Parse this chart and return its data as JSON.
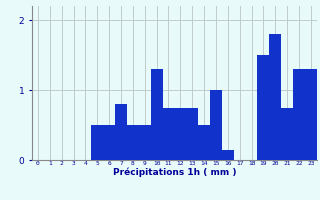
{
  "hours": [
    0,
    1,
    2,
    3,
    4,
    5,
    6,
    7,
    8,
    9,
    10,
    11,
    12,
    13,
    14,
    15,
    16,
    17,
    18,
    19,
    20,
    21,
    22,
    23
  ],
  "values": [
    0,
    0,
    0,
    0,
    0,
    0.5,
    0.5,
    0.8,
    0.5,
    0.5,
    1.3,
    0.75,
    0.75,
    0.75,
    0.5,
    1.0,
    0.15,
    0,
    0,
    1.5,
    1.8,
    0.75,
    1.3,
    1.3
  ],
  "bar_color": "#1133cc",
  "background_color": "#e8fafa",
  "grid_color": "#c0cccc",
  "text_color": "#000099",
  "xlabel": "Précipitations 1h ( mm )",
  "yticks": [
    0,
    1,
    2
  ],
  "ylim": [
    0,
    2.2
  ],
  "xlim": [
    -0.5,
    23.5
  ]
}
